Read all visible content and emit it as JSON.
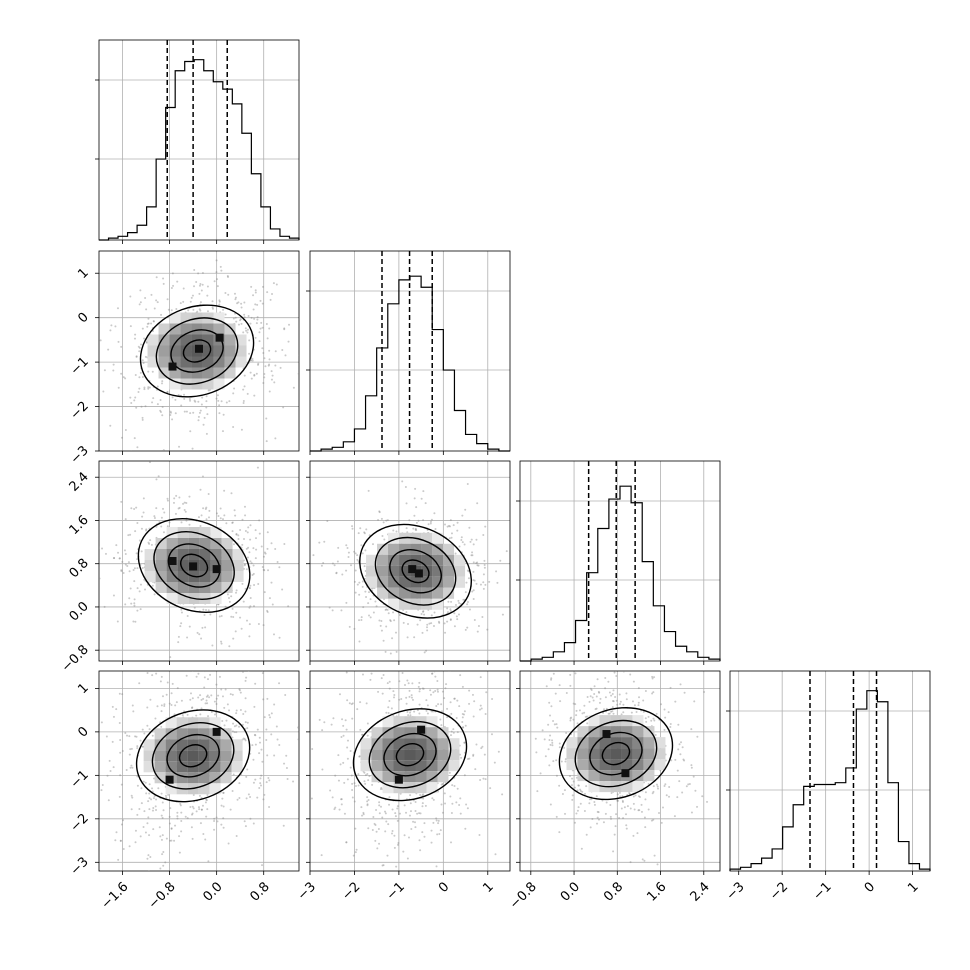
{
  "chart_data": {
    "type": "corner",
    "n_params": 4,
    "axes": [
      {
        "range": [
          -2.0,
          1.4
        ],
        "ticks": [
          -1.6,
          -0.8,
          0.0,
          0.8
        ],
        "tick_labels": [
          "−1.6",
          "−0.8",
          "0.0",
          "0.8"
        ]
      },
      {
        "range": [
          -3.0,
          1.5
        ],
        "ticks": [
          -3,
          -2,
          -1,
          0,
          1
        ],
        "tick_labels": [
          "−3",
          "−2",
          "−1",
          "0",
          "1"
        ]
      },
      {
        "range": [
          -1.0,
          2.7
        ],
        "ticks": [
          -0.8,
          0.0,
          0.8,
          1.6,
          2.4
        ],
        "tick_labels": [
          "−0.8",
          "0.0",
          "0.8",
          "1.6",
          "2.4"
        ]
      },
      {
        "range": [
          -3.2,
          1.4
        ],
        "ticks": [
          -3,
          -2,
          -1,
          0,
          1
        ],
        "tick_labels": [
          "−3",
          "−2",
          "−1",
          "0",
          "1"
        ]
      }
    ],
    "histograms": [
      {
        "bin_edges_range": [
          -2.0,
          1.4
        ],
        "counts": [
          0,
          1,
          2,
          4,
          8,
          18,
          44,
          72,
          92,
          97,
          98,
          92,
          86,
          82,
          74,
          58,
          36,
          18,
          6,
          2,
          1
        ],
        "quantiles": [
          -0.84,
          -0.4,
          0.18
        ],
        "ymax": 100
      },
      {
        "bin_edges_range": [
          -3.0,
          1.5
        ],
        "counts": [
          0,
          1,
          2,
          5,
          12,
          30,
          56,
          80,
          93,
          95,
          89,
          66,
          44,
          22,
          9,
          4,
          1,
          0
        ],
        "quantiles": [
          -1.38,
          -0.76,
          -0.25
        ],
        "ymax": 100
      },
      {
        "bin_edges_range": [
          -1.0,
          2.7
        ],
        "counts": [
          0,
          1,
          2,
          5,
          10,
          22,
          48,
          72,
          88,
          95,
          86,
          54,
          30,
          16,
          8,
          5,
          2,
          1
        ],
        "quantiles": [
          0.27,
          0.78,
          1.13
        ],
        "ymax": 100
      },
      {
        "bin_edges_range": [
          -3.2,
          1.4
        ],
        "counts": [
          1,
          2,
          4,
          7,
          12,
          24,
          36,
          46,
          47,
          47,
          48,
          56,
          88,
          98,
          92,
          48,
          16,
          4,
          1
        ],
        "quantiles": [
          -1.36,
          -0.36,
          0.17
        ],
        "ymax": 100
      }
    ],
    "joint": [
      {
        "x_param": 0,
        "y_param": 1,
        "peaks": [
          [
            -0.75,
            -1.1
          ],
          [
            -0.3,
            -0.7
          ],
          [
            0.05,
            -0.45
          ]
        ]
      },
      {
        "x_param": 0,
        "y_param": 2,
        "peaks": [
          [
            -0.75,
            0.85
          ],
          [
            -0.4,
            0.75
          ],
          [
            0.0,
            0.7
          ]
        ]
      },
      {
        "x_param": 1,
        "y_param": 2,
        "peaks": [
          [
            -0.7,
            0.7
          ],
          [
            -0.55,
            0.62
          ]
        ]
      },
      {
        "x_param": 0,
        "y_param": 3,
        "peaks": [
          [
            0.0,
            0.0
          ],
          [
            -0.8,
            -1.1
          ]
        ]
      },
      {
        "x_param": 1,
        "y_param": 3,
        "peaks": [
          [
            -0.5,
            0.05
          ],
          [
            -1.0,
            -1.1
          ]
        ]
      },
      {
        "x_param": 2,
        "y_param": 3,
        "peaks": [
          [
            0.6,
            -0.05
          ],
          [
            0.95,
            -0.95
          ]
        ]
      }
    ]
  }
}
